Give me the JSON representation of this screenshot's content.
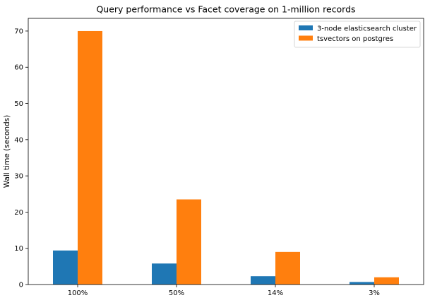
{
  "chart_data": {
    "type": "bar",
    "title": "Query performance vs Facet coverage on 1-million records",
    "xlabel": "",
    "ylabel": "Wall time (seconds)",
    "categories": [
      "100%",
      "50%",
      "14%",
      "3%"
    ],
    "ylim": [
      0,
      73.5
    ],
    "yticks": [
      0,
      10,
      20,
      30,
      40,
      50,
      60,
      70
    ],
    "grid": false,
    "legend_position": "top-right",
    "series": [
      {
        "name": "3-node elasticsearch cluster",
        "color": "#1f77b4",
        "values": [
          9.4,
          5.8,
          2.3,
          0.7
        ]
      },
      {
        "name": "tsvectors on postgres",
        "color": "#ff7f0e",
        "values": [
          70.0,
          23.5,
          9.0,
          2.0
        ]
      }
    ]
  }
}
